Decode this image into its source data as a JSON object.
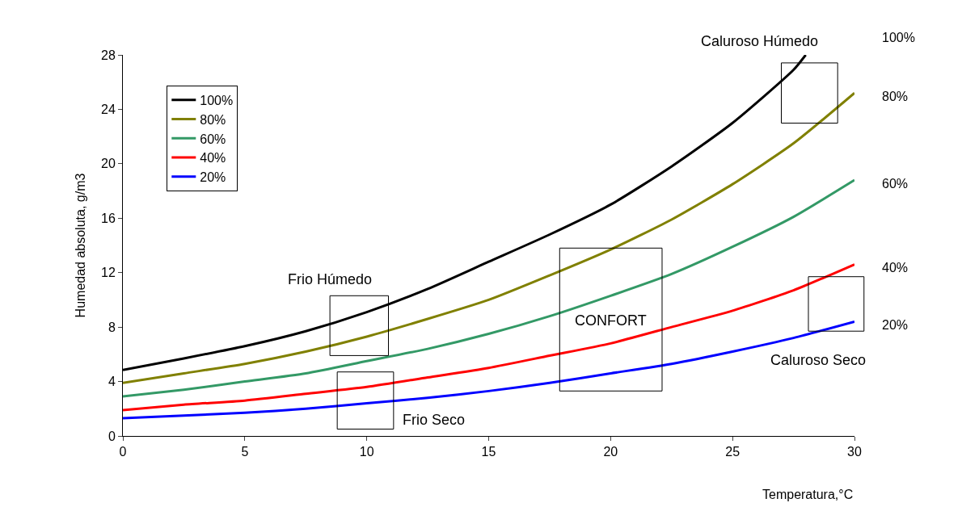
{
  "chart_data": {
    "type": "line",
    "xlabel": "Temperatura,°C",
    "ylabel": "Humedad absoluta, g/m3",
    "xlim": [
      0,
      30
    ],
    "xticks": [
      0,
      5,
      10,
      15,
      20,
      25,
      30
    ],
    "ylim": [
      0,
      28
    ],
    "yticks": [
      0,
      4,
      8,
      12,
      16,
      20,
      24,
      28
    ],
    "legend": "top left",
    "marker": "none",
    "line_style": "solid",
    "series": [
      {
        "name": "100%",
        "color": "#000000",
        "x": [
          0,
          2.5,
          5,
          7.5,
          10,
          12.5,
          15,
          17.5,
          20,
          22.5,
          25,
          27.5,
          28
        ],
        "values": [
          4.85,
          5.7,
          6.6,
          7.7,
          9.1,
          10.8,
          12.8,
          14.8,
          17.0,
          19.8,
          23.0,
          26.9,
          28.0
        ]
      },
      {
        "name": "80%",
        "color": "#808000",
        "x": [
          0,
          2.5,
          5,
          7.5,
          10,
          12.5,
          15,
          17.5,
          20,
          22.5,
          25,
          27.5,
          30
        ],
        "values": [
          3.9,
          4.6,
          5.3,
          6.2,
          7.3,
          8.6,
          10.0,
          11.8,
          13.7,
          15.9,
          18.5,
          21.5,
          25.2
        ]
      },
      {
        "name": "60%",
        "color": "#339966",
        "x": [
          0,
          2.5,
          5,
          7.5,
          10,
          12.5,
          15,
          17.5,
          20,
          22.5,
          25,
          27.5,
          30
        ],
        "values": [
          2.9,
          3.4,
          4.0,
          4.6,
          5.5,
          6.4,
          7.5,
          8.8,
          10.3,
          11.9,
          13.9,
          16.1,
          18.8
        ]
      },
      {
        "name": "40%",
        "color": "#ff0000",
        "x": [
          0,
          2.5,
          5,
          7.5,
          10,
          12.5,
          15,
          17.5,
          20,
          22.5,
          25,
          27.5,
          30
        ],
        "values": [
          1.9,
          2.3,
          2.6,
          3.1,
          3.6,
          4.3,
          5.0,
          5.9,
          6.8,
          8.0,
          9.2,
          10.7,
          12.6
        ]
      },
      {
        "name": "20%",
        "color": "#0000ff",
        "x": [
          0,
          2.5,
          5,
          7.5,
          10,
          12.5,
          15,
          17.5,
          20,
          22.5,
          25,
          27.5,
          30
        ],
        "values": [
          1.3,
          1.5,
          1.7,
          2.0,
          2.4,
          2.8,
          3.3,
          3.9,
          4.6,
          5.3,
          6.2,
          7.2,
          8.4
        ]
      }
    ],
    "annotations": [
      "Caluroso Húmedo",
      "Frio Húmedo",
      "Frio Seco",
      "CONFORT",
      "Caluroso Seco"
    ]
  }
}
